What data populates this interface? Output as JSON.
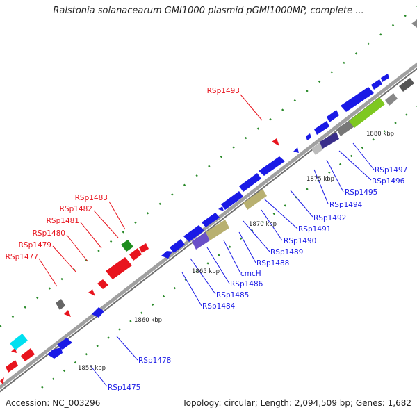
{
  "title": "Ralstonia solanacearum GMI1000 plasmid pGMI1000MP, complete ...",
  "footer": {
    "accession": "Accession: NC_003296",
    "summary": "Topology: circular; Length: 2,094,509 bp; Genes: 1,682"
  },
  "colors": {
    "forward_gene": "#e8141e",
    "reverse_gene": "#1a1ae6",
    "backbone": "#888888",
    "tick": "#2a8a2a"
  },
  "scale_labels": [
    "1855 kbp",
    "1860 kbp",
    "1865 kbp",
    "1870 kbp",
    "1875 kbp",
    "1880 kbp"
  ],
  "gene_labels_forward": [
    "RSp1493",
    "RSp1483",
    "RSp1482",
    "RSp1481",
    "RSp1480",
    "RSp1479",
    "RSp1477"
  ],
  "gene_labels_reverse": [
    "RSp1497",
    "RSp1496",
    "RSp1495",
    "RSp1494",
    "RSp1492",
    "RSp1491",
    "RSp1490",
    "RSp1489",
    "RSp1488",
    "cmcH",
    "RSp1486",
    "RSp1485",
    "RSp1484",
    "RSp1478",
    "RSp1475"
  ]
}
